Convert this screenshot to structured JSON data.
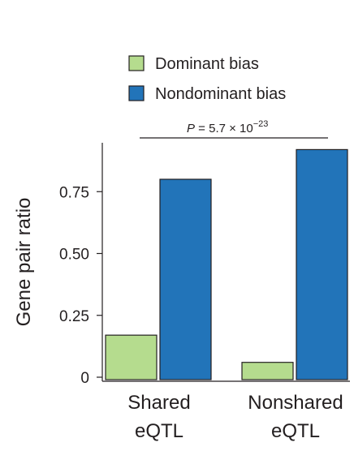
{
  "chart_data": {
    "type": "bar",
    "categories": [
      "Shared eQTL",
      "Nonshared eQTL"
    ],
    "category_lines": [
      [
        "Shared",
        "eQTL"
      ],
      [
        "Nonshared",
        "eQTL"
      ]
    ],
    "series": [
      {
        "name": "Dominant bias",
        "values": [
          0.17,
          0.06
        ],
        "color": "#b5dc8e"
      },
      {
        "name": "Nondominant bias",
        "values": [
          0.8,
          0.92
        ],
        "color": "#2274b9"
      }
    ],
    "ylabel": "Gene pair ratio",
    "xlabel": "",
    "yticks": [
      0,
      0.25,
      0.5,
      0.75
    ],
    "ytick_labels": [
      "0",
      "0.25",
      "0.50",
      "0.75"
    ],
    "ylim": [
      0,
      0.93
    ],
    "legend_position": "top",
    "grid": false,
    "annotation": {
      "p_symbol": "P",
      "p_text": " = 5.7 × 10",
      "p_exponent": "−23"
    }
  }
}
